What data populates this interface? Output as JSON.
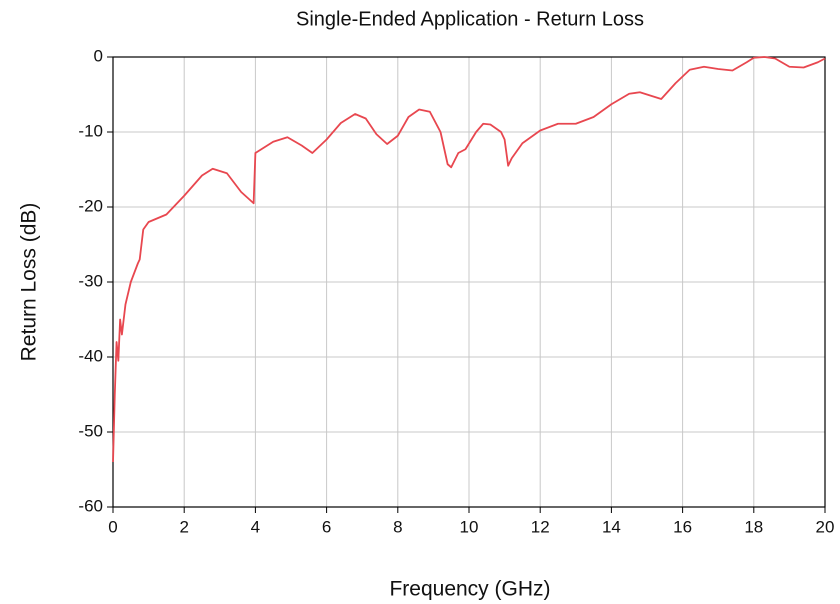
{
  "chart_data": {
    "type": "line",
    "title": "Single-Ended Application - Return Loss",
    "x_label": "Frequency (GHz)",
    "y_label": "Return Loss (dB)",
    "x": [
      0.0,
      0.05,
      0.1,
      0.15,
      0.2,
      0.25,
      0.35,
      0.5,
      0.7,
      0.75,
      0.85,
      1.0,
      1.5,
      2.0,
      2.5,
      2.8,
      3.2,
      3.6,
      3.95,
      4.0,
      4.5,
      4.9,
      5.3,
      5.6,
      6.0,
      6.4,
      6.8,
      7.1,
      7.4,
      7.7,
      8.0,
      8.3,
      8.6,
      8.9,
      9.2,
      9.4,
      9.5,
      9.7,
      9.9,
      10.2,
      10.4,
      10.6,
      10.9,
      11.0,
      11.1,
      11.2,
      11.5,
      12.0,
      12.5,
      13.0,
      13.5,
      14.0,
      14.5,
      14.8,
      15.2,
      15.4,
      15.8,
      16.2,
      16.6,
      17.0,
      17.4,
      17.8,
      18.0,
      18.3,
      18.6,
      19.0,
      19.4,
      19.8,
      20.0
    ],
    "series": [
      {
        "name": "Return Loss",
        "color": "#e8474f",
        "values": [
          -54,
          -45,
          -38,
          -40.5,
          -35,
          -37,
          -33,
          -30,
          -27.5,
          -27,
          -23,
          -22,
          -21,
          -18.5,
          -15.8,
          -14.9,
          -15.5,
          -18,
          -19.5,
          -12.8,
          -11.3,
          -10.7,
          -11.8,
          -12.8,
          -11,
          -8.8,
          -7.6,
          -8.2,
          -10.3,
          -11.6,
          -10.5,
          -8,
          -7,
          -7.3,
          -10,
          -14.3,
          -14.7,
          -12.8,
          -12.3,
          -10,
          -8.9,
          -9,
          -10,
          -11,
          -14.5,
          -13.5,
          -11.5,
          -9.8,
          -8.9,
          -8.9,
          -8,
          -6.3,
          -4.9,
          -4.7,
          -5.3,
          -5.6,
          -3.5,
          -1.7,
          -1.3,
          -1.6,
          -1.8,
          -0.7,
          -0.1,
          0,
          -0.2,
          -1.3,
          -1.4,
          -0.7,
          -0.2
        ]
      }
    ],
    "xlim": [
      0,
      20
    ],
    "xticks": [
      0,
      2,
      4,
      6,
      8,
      10,
      12,
      14,
      16,
      18,
      20
    ],
    "ylim": [
      -60,
      0
    ],
    "yticks": [
      -60,
      -50,
      -40,
      -30,
      -20,
      -10,
      0
    ],
    "grid": true
  }
}
